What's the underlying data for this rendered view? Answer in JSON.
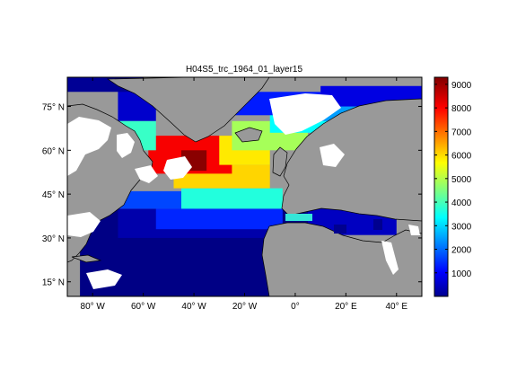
{
  "figure": {
    "title": "H04S5_trc_1964_01_layer15"
  },
  "map": {
    "lon_range": [
      -90,
      50
    ],
    "lat_range": [
      10,
      85
    ],
    "land_color": "#999999",
    "ice_color": "#ffffff",
    "lon_ticks": [
      {
        "value": -80,
        "label": "80° W"
      },
      {
        "value": -60,
        "label": "60° W"
      },
      {
        "value": -40,
        "label": "40° W"
      },
      {
        "value": -20,
        "label": "20° W"
      },
      {
        "value": 0,
        "label": "0°"
      },
      {
        "value": 20,
        "label": "20° E"
      },
      {
        "value": 40,
        "label": "40° E"
      }
    ],
    "lat_ticks": [
      {
        "value": 15,
        "label": "15° N"
      },
      {
        "value": 30,
        "label": "30° N"
      },
      {
        "value": 45,
        "label": "45° N"
      },
      {
        "value": 60,
        "label": "60° N"
      },
      {
        "value": 75,
        "label": "75° N"
      }
    ]
  },
  "colorbar": {
    "range": [
      0,
      9300
    ],
    "ticks": [
      {
        "value": 1000,
        "label": "1000"
      },
      {
        "value": 2000,
        "label": "2000"
      },
      {
        "value": 3000,
        "label": "3000"
      },
      {
        "value": 4000,
        "label": "4000"
      },
      {
        "value": 5000,
        "label": "5000"
      },
      {
        "value": 6000,
        "label": "6000"
      },
      {
        "value": 7000,
        "label": "7000"
      },
      {
        "value": 8000,
        "label": "8000"
      },
      {
        "value": 9000,
        "label": "9000"
      }
    ],
    "colormap": "jet"
  },
  "chart_data": {
    "type": "heatmap",
    "title": "H04S5_trc_1964_01_layer15",
    "xlim": [
      -90,
      50
    ],
    "ylim": [
      10,
      85
    ],
    "zlim": [
      0,
      9300
    ],
    "field_cells": [
      {
        "lon": [
          -85,
          10
        ],
        "lat": [
          10,
          40
        ],
        "value": 50
      },
      {
        "lon": [
          -70,
          -5
        ],
        "lat": [
          30,
          40
        ],
        "value": 400
      },
      {
        "lon": [
          -55,
          -5
        ],
        "lat": [
          33,
          40
        ],
        "value": 1500
      },
      {
        "lon": [
          -70,
          -40
        ],
        "lat": [
          40,
          46
        ],
        "value": 1800
      },
      {
        "lon": [
          -45,
          -5
        ],
        "lat": [
          40,
          47
        ],
        "value": 3800
      },
      {
        "lon": [
          -48,
          -10
        ],
        "lat": [
          47,
          55
        ],
        "value": 6200
      },
      {
        "lon": [
          -58,
          -25
        ],
        "lat": [
          52,
          65
        ],
        "value": 8200
      },
      {
        "lon": [
          -45,
          -35
        ],
        "lat": [
          53,
          60
        ],
        "value": 9200
      },
      {
        "lon": [
          -30,
          -10
        ],
        "lat": [
          55,
          65
        ],
        "value": 6000
      },
      {
        "lon": [
          -25,
          5
        ],
        "lat": [
          60,
          70
        ],
        "value": 5000
      },
      {
        "lon": [
          -10,
          20
        ],
        "lat": [
          66,
          74
        ],
        "value": 3500
      },
      {
        "lon": [
          5,
          30
        ],
        "lat": [
          70,
          75
        ],
        "value": 2600
      },
      {
        "lon": [
          -30,
          10
        ],
        "lat": [
          72,
          80
        ],
        "value": 1400
      },
      {
        "lon": [
          10,
          50
        ],
        "lat": [
          75,
          82
        ],
        "value": 900
      },
      {
        "lon": [
          -70,
          -55
        ],
        "lat": [
          70,
          82
        ],
        "value": 700
      },
      {
        "lon": [
          -70,
          -55
        ],
        "lat": [
          60,
          70
        ],
        "value": 4000
      },
      {
        "lon": [
          -90,
          -60
        ],
        "lat": [
          80,
          85
        ],
        "value": 200
      },
      {
        "lon": [
          5,
          40
        ],
        "lat": [
          31,
          40
        ],
        "value": 600
      }
    ]
  }
}
